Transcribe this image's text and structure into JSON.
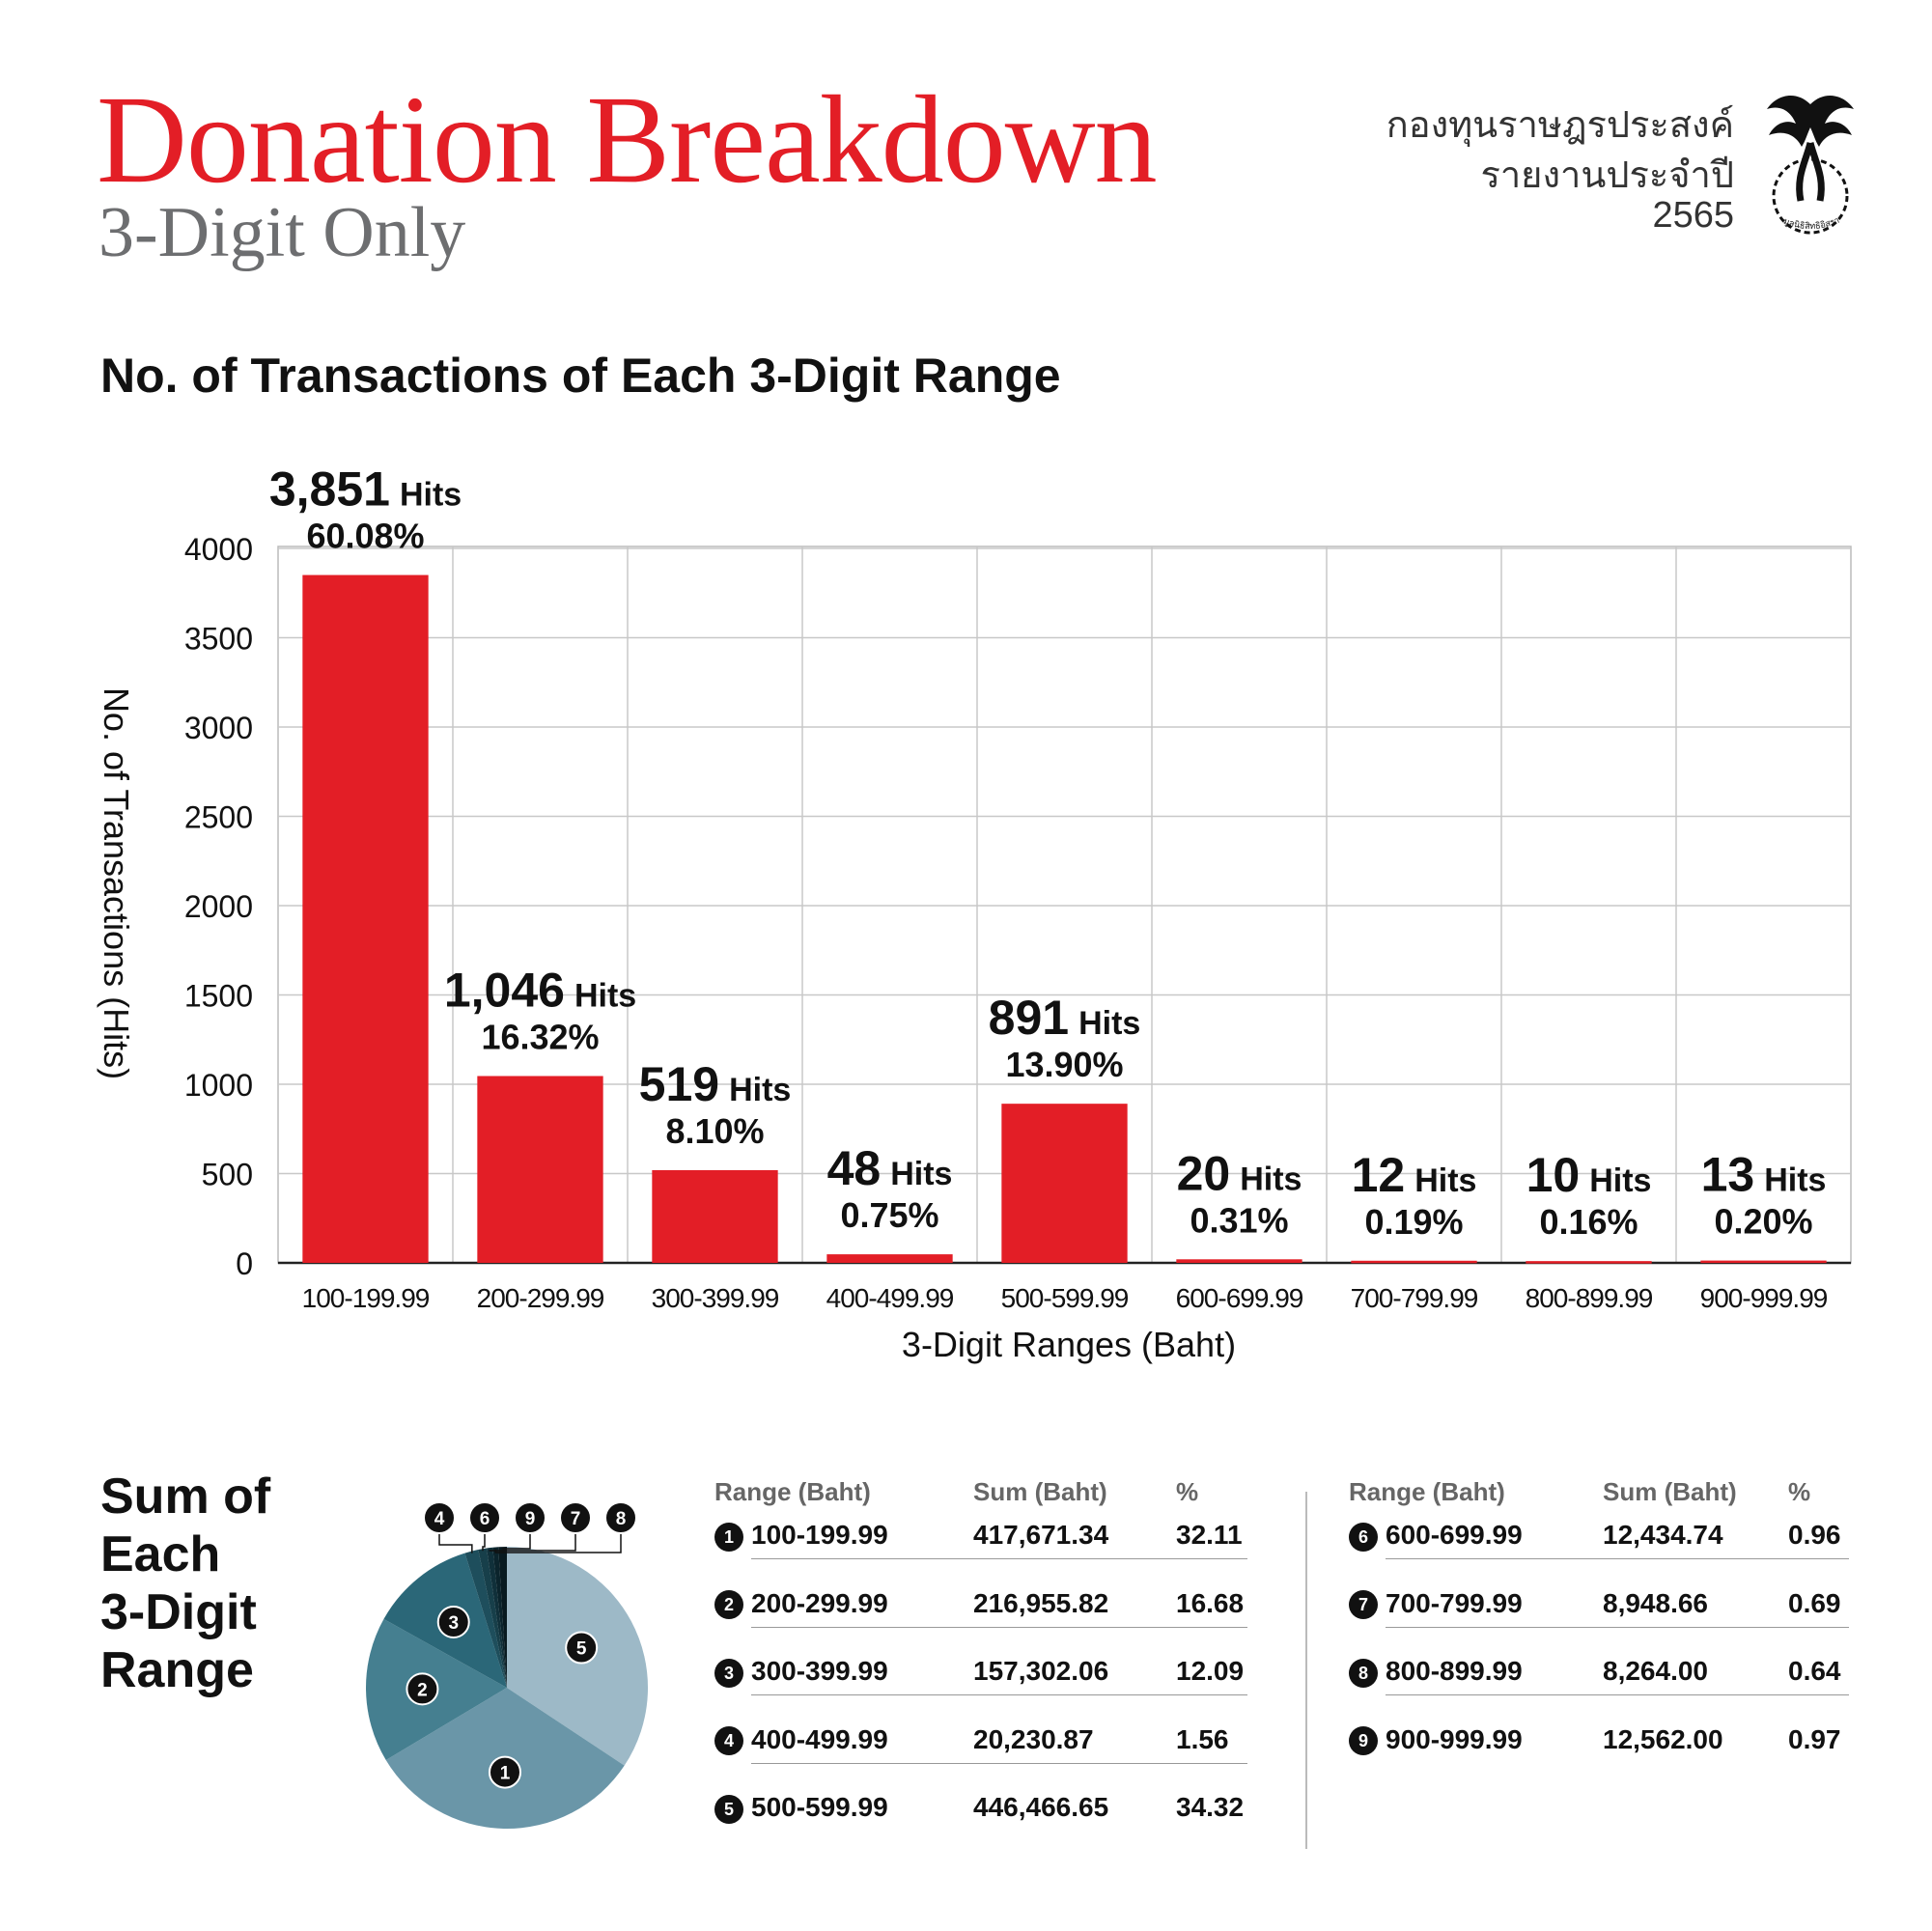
{
  "header": {
    "title": "Donation Breakdown",
    "subtitle": "3-Digit Only",
    "org_name": "กองทุนราษฎรประสงค์",
    "org_report": "รายงานประจำปี",
    "org_year": "2565",
    "logo_text": "มูลนิธิสิทธิอิสรา"
  },
  "colors": {
    "accent": "#e31e26",
    "pie": [
      "#6a96a8",
      "#457f90",
      "#2b6778",
      "#1e4e5c",
      "#9db9c7",
      "#173f4a",
      "#10303a",
      "#0b242c",
      "#081a20"
    ]
  },
  "chart_data": [
    {
      "type": "bar",
      "title": "No. of Transactions of Each 3-Digit Range",
      "xlabel": "3-Digit Ranges (Baht)",
      "ylabel": "No. of Transactions (Hits)",
      "ylim": [
        0,
        4000
      ],
      "yticks": [
        0,
        500,
        1000,
        1500,
        2000,
        2500,
        3000,
        3500,
        4000
      ],
      "grid": true,
      "categories": [
        "100-199.99",
        "200-299.99",
        "300-399.99",
        "400-499.99",
        "500-599.99",
        "600-699.99",
        "700-799.99",
        "800-899.99",
        "900-999.99"
      ],
      "values": [
        3851,
        1046,
        519,
        48,
        891,
        20,
        12,
        10,
        13
      ],
      "value_labels": [
        "3,851",
        "1,046",
        "519",
        "48",
        "891",
        "20",
        "12",
        "10",
        "13"
      ],
      "unit_label": "Hits",
      "percent_labels": [
        "60.08%",
        "16.32%",
        "8.10%",
        "0.75%",
        "13.90%",
        "0.31%",
        "0.19%",
        "0.16%",
        "0.20%"
      ]
    },
    {
      "type": "pie",
      "title": "Sum of\nEach\n3-Digit\nRange",
      "labels": [
        "1",
        "2",
        "3",
        "4",
        "5",
        "6",
        "7",
        "8",
        "9"
      ],
      "values": [
        32.11,
        16.68,
        12.09,
        1.56,
        34.32,
        0.96,
        0.69,
        0.64,
        0.97
      ],
      "callout_order": [
        "4",
        "6",
        "9",
        "7",
        "8"
      ]
    }
  ],
  "table": {
    "headers": {
      "range": "Range (Baht)",
      "sum": "Sum (Baht)",
      "pct": "%"
    },
    "rows": [
      {
        "num": "1",
        "range": "100-199.99",
        "sum": "417,671.34",
        "pct": "32.11"
      },
      {
        "num": "2",
        "range": "200-299.99",
        "sum": "216,955.82",
        "pct": "16.68"
      },
      {
        "num": "3",
        "range": "300-399.99",
        "sum": "157,302.06",
        "pct": "12.09"
      },
      {
        "num": "4",
        "range": "400-499.99",
        "sum": "20,230.87",
        "pct": "1.56"
      },
      {
        "num": "5",
        "range": "500-599.99",
        "sum": "446,466.65",
        "pct": "34.32"
      },
      {
        "num": "6",
        "range": "600-699.99",
        "sum": "12,434.74",
        "pct": "0.96"
      },
      {
        "num": "7",
        "range": "700-799.99",
        "sum": "8,948.66",
        "pct": "0.69"
      },
      {
        "num": "8",
        "range": "800-899.99",
        "sum": "8,264.00",
        "pct": "0.64"
      },
      {
        "num": "9",
        "range": "900-999.99",
        "sum": "12,562.00",
        "pct": "0.97"
      }
    ]
  }
}
